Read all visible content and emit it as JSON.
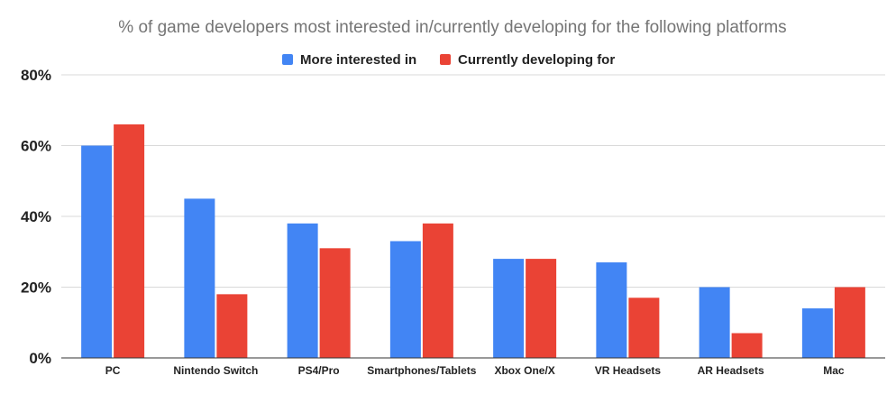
{
  "chart_data": {
    "type": "bar",
    "title": "% of game developers most interested in/currently developing for the following platforms",
    "categories": [
      "PC",
      "Nintendo Switch",
      "PS4/Pro",
      "Smartphones/Tablets",
      "Xbox One/X",
      "VR Headsets",
      "AR Headsets",
      "Mac"
    ],
    "series": [
      {
        "name": "More interested in",
        "color": "#4285f4",
        "values": [
          60,
          45,
          38,
          33,
          28,
          27,
          20,
          14
        ]
      },
      {
        "name": "Currently developing for",
        "color": "#ea4335",
        "values": [
          66,
          18,
          31,
          38,
          28,
          17,
          7,
          20
        ]
      }
    ],
    "ylim": [
      0,
      80
    ],
    "yticks": [
      "0%",
      "20%",
      "40%",
      "60%",
      "80%"
    ],
    "grid": true,
    "legend_position": "top-center"
  }
}
